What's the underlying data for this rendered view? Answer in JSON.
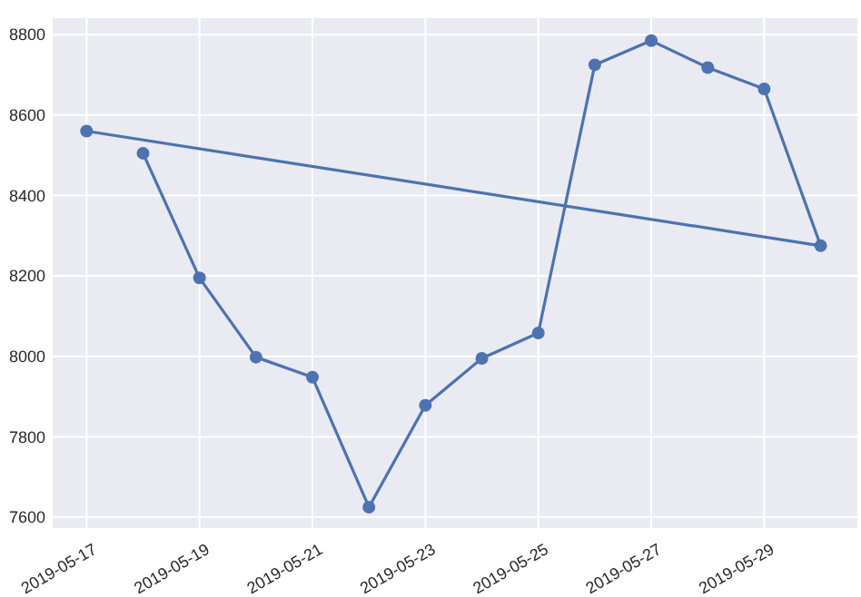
{
  "chart_data": {
    "type": "line",
    "x": [
      "2019-05-18",
      "2019-05-19",
      "2019-05-20",
      "2019-05-21",
      "2019-05-22",
      "2019-05-23",
      "2019-05-24",
      "2019-05-25",
      "2019-05-26",
      "2019-05-27",
      "2019-05-28",
      "2019-05-29",
      "2019-05-30",
      "2019-05-17"
    ],
    "series": [
      {
        "color": "#4c72b0",
        "values": [
          8505,
          8195,
          7998,
          7948,
          7625,
          7878,
          7995,
          8058,
          8725,
          8785,
          8718,
          8665,
          8275,
          8560
        ]
      }
    ],
    "xlim": [
      "2019-05-16T09:36",
      "2019-05-30T15:36"
    ],
    "xticks": [
      "2019-05-17",
      "2019-05-19",
      "2019-05-21",
      "2019-05-23",
      "2019-05-25",
      "2019-05-27",
      "2019-05-29"
    ],
    "ylim": [
      7573,
      8841
    ],
    "yticks": [
      7600,
      7800,
      8000,
      8200,
      8400,
      8600,
      8800
    ],
    "grid": true,
    "marker": "circle",
    "line_style": "solid"
  }
}
